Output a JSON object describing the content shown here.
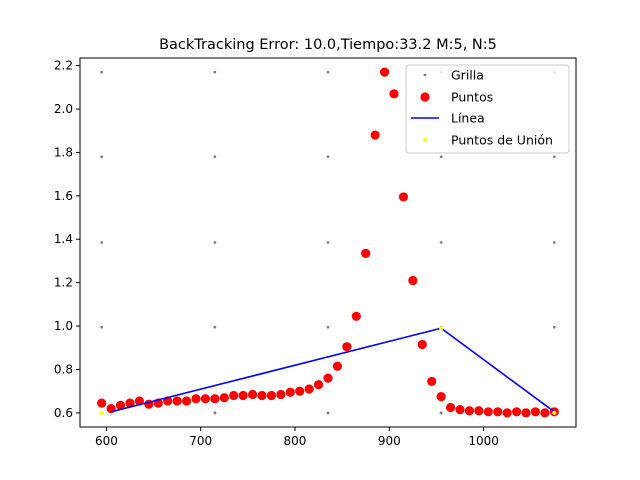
{
  "chart_data": {
    "type": "scatter",
    "title": "BackTracking Error: 10.0,Tiempo:33.2  M:5, N:5",
    "xlabel": "",
    "ylabel": "",
    "xlim": [
      572,
      1098
    ],
    "ylim": [
      0.535,
      2.235
    ],
    "xticks": [
      600,
      700,
      800,
      900,
      1000
    ],
    "yticks": [
      0.6,
      0.8,
      1.0,
      1.2,
      1.4,
      1.6,
      1.8,
      2.0,
      2.2
    ],
    "xtick_labels": [
      "600",
      "700",
      "800",
      "900",
      "1000"
    ],
    "ytick_labels": [
      "0.6",
      "0.8",
      "1.0",
      "1.2",
      "1.4",
      "1.6",
      "1.8",
      "2.0",
      "2.2"
    ],
    "grid": false,
    "legend_position": "top-right",
    "legend": [
      "Grilla",
      "Puntos",
      "Línea",
      "Puntos de Unión"
    ],
    "colors": {
      "grilla": "#808080",
      "puntos": "#ff0000",
      "linea": "#0000ff",
      "union": "#ffff00"
    },
    "series": [
      {
        "name": "Grilla",
        "kind": "scatter-small",
        "x": [
          595,
          595,
          595,
          595,
          595,
          595,
          715,
          715,
          715,
          715,
          715,
          715,
          835,
          835,
          835,
          835,
          835,
          835,
          955,
          955,
          955,
          955,
          955,
          955,
          1075,
          1075,
          1075,
          1075,
          1075,
          1075
        ],
        "y": [
          0.6,
          0.995,
          1.385,
          1.78,
          2.17,
          0.6,
          0.6,
          0.995,
          1.385,
          1.78,
          2.17,
          0.6,
          0.6,
          0.995,
          1.385,
          1.78,
          2.17,
          0.6,
          0.6,
          0.995,
          1.385,
          1.78,
          2.17,
          0.6,
          0.6,
          0.995,
          1.385,
          1.78,
          2.17,
          0.6
        ]
      },
      {
        "name": "Puntos",
        "kind": "scatter",
        "x": [
          595,
          605,
          615,
          625,
          635,
          645,
          655,
          665,
          675,
          685,
          695,
          705,
          715,
          725,
          735,
          745,
          755,
          765,
          775,
          785,
          795,
          805,
          815,
          825,
          835,
          845,
          855,
          865,
          875,
          885,
          895,
          905,
          915,
          925,
          935,
          945,
          955,
          965,
          975,
          985,
          995,
          1005,
          1015,
          1025,
          1035,
          1045,
          1055,
          1065,
          1075
        ],
        "y": [
          0.645,
          0.62,
          0.635,
          0.645,
          0.655,
          0.64,
          0.645,
          0.655,
          0.655,
          0.655,
          0.665,
          0.665,
          0.665,
          0.67,
          0.68,
          0.68,
          0.685,
          0.68,
          0.68,
          0.685,
          0.695,
          0.7,
          0.71,
          0.73,
          0.76,
          0.815,
          0.905,
          1.045,
          1.335,
          1.88,
          2.17,
          2.07,
          1.595,
          1.21,
          0.915,
          0.745,
          0.675,
          0.625,
          0.615,
          0.61,
          0.61,
          0.605,
          0.605,
          0.6,
          0.605,
          0.6,
          0.605,
          0.6,
          0.605
        ]
      },
      {
        "name": "Línea",
        "kind": "line",
        "x": [
          605,
          955,
          1075
        ],
        "y": [
          0.605,
          0.99,
          0.605
        ]
      },
      {
        "name": "Puntos de Unión",
        "kind": "scatter-small",
        "x": [
          595,
          955,
          1075
        ],
        "y": [
          0.6,
          0.99,
          0.6
        ]
      }
    ]
  }
}
